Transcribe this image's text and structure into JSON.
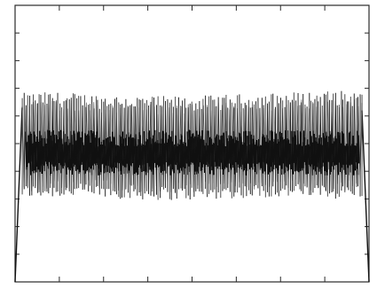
{
  "chart_data": {
    "type": "line",
    "title": "",
    "xlabel": "",
    "ylabel": "",
    "x_range": [
      0,
      1
    ],
    "y_range": [
      0,
      10
    ],
    "grid": false,
    "legend": "none",
    "x_ticks_top": 7,
    "x_ticks_bottom": 7,
    "y_ticks_left": 9,
    "y_ticks_right": 9,
    "series": [
      {
        "envelope": {
          "x": [
            0.0,
            0.02,
            0.04,
            0.98,
            1.0
          ],
          "upper": [
            0.0,
            6.5,
            6.1,
            6.1,
            0.0
          ],
          "lower": [
            0.0,
            3.1,
            3.3,
            3.3,
            0.0
          ]
        },
        "band": {
          "x": [
            0.0,
            0.1,
            0.2,
            0.3,
            0.4,
            0.5,
            0.6,
            0.7,
            0.8,
            0.9,
            1.0
          ],
          "upper": [
            6.55,
            6.6,
            6.55,
            6.5,
            6.45,
            6.45,
            6.5,
            6.55,
            6.6,
            6.65,
            6.6
          ],
          "lower": [
            3.25,
            3.3,
            3.3,
            3.25,
            3.2,
            3.2,
            3.25,
            3.3,
            3.3,
            3.25,
            3.3
          ]
        },
        "dense_core": [
          4.1,
          5.2
        ],
        "oscillation_count": 180
      }
    ],
    "colors": {
      "axis": "#2a2a2a",
      "signal": "#111111",
      "signal_light": "#3a3a3a"
    }
  }
}
